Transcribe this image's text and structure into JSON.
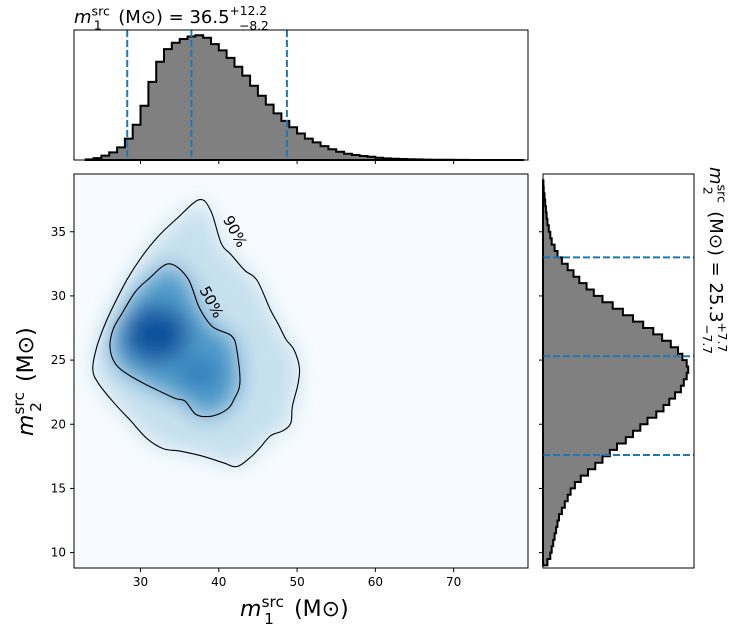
{
  "chart_data": [
    {
      "type": "heatmap",
      "panel": "joint",
      "xlabel": "m_1^src (M_⊙)",
      "ylabel": "m_2^src (M_⊙)",
      "xlim": [
        21.5,
        79.5
      ],
      "ylim": [
        8.8,
        39.5
      ],
      "xticks": [
        30,
        40,
        50,
        60,
        70
      ],
      "yticks": [
        10,
        15,
        20,
        25,
        30,
        35
      ],
      "colormap": "Blues",
      "density_peak": {
        "x": 32,
        "y": 27
      },
      "contours": [
        {
          "label": "50%",
          "points": [
            [
              33.6,
              32.5
            ],
            [
              36.0,
              31.4
            ],
            [
              37.5,
              29.1
            ],
            [
              39.2,
              27.6
            ],
            [
              41.6,
              26.9
            ],
            [
              42.3,
              25.8
            ],
            [
              42.7,
              23.2
            ],
            [
              41.9,
              21.9
            ],
            [
              41.3,
              21.3
            ],
            [
              40.0,
              20.8
            ],
            [
              38.5,
              20.6
            ],
            [
              37.0,
              20.8
            ],
            [
              35.7,
              21.8
            ],
            [
              34.5,
              22.0
            ],
            [
              32.7,
              22.5
            ],
            [
              31.0,
              23.0
            ],
            [
              28.6,
              23.8
            ],
            [
              26.8,
              24.7
            ],
            [
              26.1,
              26.0
            ],
            [
              26.5,
              27.4
            ],
            [
              27.7,
              28.7
            ],
            [
              29.3,
              30.3
            ],
            [
              31.0,
              31.3
            ]
          ],
          "label_pos": [
            39.0,
            29.5
          ]
        },
        {
          "label": "90%",
          "points": [
            [
              37.5,
              37.5
            ],
            [
              39.0,
              36.6
            ],
            [
              40.3,
              34.1
            ],
            [
              41.6,
              33.2
            ],
            [
              43.3,
              32.0
            ],
            [
              44.9,
              31.2
            ],
            [
              46.6,
              28.9
            ],
            [
              47.6,
              27.8
            ],
            [
              48.6,
              26.6
            ],
            [
              49.6,
              25.8
            ],
            [
              50.3,
              24.4
            ],
            [
              50.1,
              23.1
            ],
            [
              49.4,
              21.4
            ],
            [
              49.2,
              20.1
            ],
            [
              48.2,
              19.5
            ],
            [
              46.6,
              19.1
            ],
            [
              45.3,
              18.2
            ],
            [
              44.0,
              17.4
            ],
            [
              42.3,
              16.7
            ],
            [
              40.6,
              17.0
            ],
            [
              38.0,
              17.5
            ],
            [
              35.1,
              17.9
            ],
            [
              32.9,
              18.1
            ],
            [
              30.8,
              18.9
            ],
            [
              28.7,
              20.3
            ],
            [
              26.7,
              21.6
            ],
            [
              24.6,
              23.2
            ],
            [
              23.9,
              24.3
            ],
            [
              24.4,
              26.0
            ],
            [
              25.4,
              27.7
            ],
            [
              26.6,
              29.3
            ],
            [
              28.3,
              31.3
            ],
            [
              30.1,
              33.0
            ],
            [
              32.2,
              34.6
            ],
            [
              34.6,
              36.0
            ]
          ],
          "label_pos": [
            42.0,
            35.0
          ]
        }
      ]
    },
    {
      "type": "bar",
      "panel": "marginal-top",
      "title": "m_1^src (M_⊙) = 36.5",
      "title_parts": {
        "prefix": "m",
        "sub": "1",
        "sup": "src",
        "unit": "(M_⊙) = 36.5",
        "upper": "+12.2",
        "lower": "−8.2"
      },
      "xlim": [
        21.5,
        79.5
      ],
      "bin_start": 23,
      "bin_width": 1,
      "values": [
        0.5,
        1.5,
        3.5,
        6,
        10,
        17,
        28,
        43,
        62,
        78,
        88,
        93,
        96,
        98,
        99,
        97,
        92,
        87,
        81,
        74,
        67,
        59,
        51,
        44,
        37,
        31,
        26,
        21,
        17,
        14,
        11,
        8.5,
        6.5,
        5,
        4,
        3.2,
        2.5,
        1.8,
        1.3,
        1,
        0.8,
        0.6,
        0.45,
        0.35,
        0.25,
        0.2,
        0.15,
        0.1,
        0.05,
        0.03,
        0.02,
        0.01,
        0.01,
        0.01,
        0.01,
        0
      ],
      "ylim": [
        0,
        100
      ],
      "vlines": [
        28.3,
        36.5,
        48.7
      ]
    },
    {
      "type": "bar",
      "panel": "marginal-right",
      "orientation": "horizontal",
      "title": "m_2^src (M_⊙) = 25.3",
      "title_parts": {
        "prefix": "m",
        "sub": "2",
        "sup": "src",
        "unit": "(M_⊙) = 25.3",
        "upper": "+7.7",
        "lower": "−7.7"
      },
      "ylim": [
        8.8,
        39.5
      ],
      "bin_start": 9,
      "bin_width": 0.5,
      "values": [
        3,
        5,
        6,
        7,
        8,
        9,
        10,
        11,
        13,
        15,
        17,
        19,
        22,
        26,
        31,
        36,
        41,
        46,
        51,
        57,
        62,
        67,
        72,
        78,
        83,
        87,
        91,
        95,
        97,
        99,
        100,
        99,
        96,
        93,
        88,
        82,
        76,
        69,
        62,
        55,
        48,
        41,
        35,
        30,
        25,
        21,
        17,
        13,
        10,
        8,
        6,
        5,
        4,
        3,
        2.5,
        2,
        1.5,
        1,
        0.5,
        0.3
      ],
      "xlim": [
        0,
        104
      ],
      "hlines": [
        17.6,
        25.3,
        33.0
      ]
    }
  ]
}
